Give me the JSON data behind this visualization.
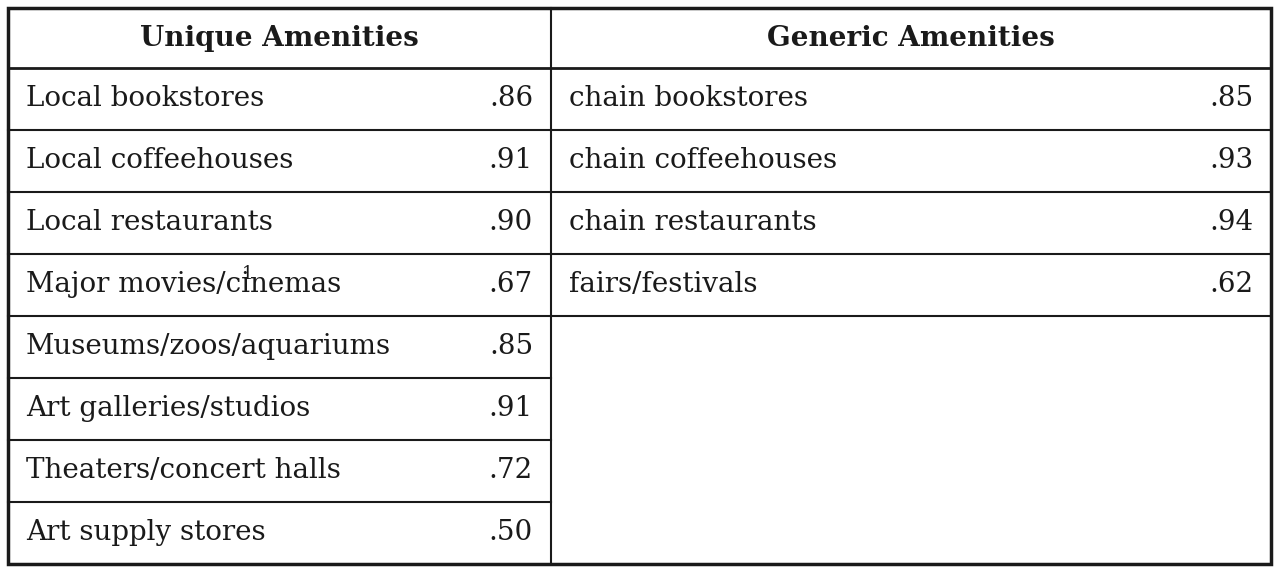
{
  "col1_header": "Unique Amenities",
  "col2_header": "Generic Amenities",
  "unique_items": [
    [
      "Local bookstores",
      ".86"
    ],
    [
      "Local coffeehouses",
      ".91"
    ],
    [
      "Local restaurants",
      ".90"
    ],
    [
      "Major movies/cinemas",
      ".67"
    ],
    [
      "Museums/zoos/aquariums",
      ".85"
    ],
    [
      "Art galleries/studios",
      ".91"
    ],
    [
      "Theaters/concert halls",
      ".72"
    ],
    [
      "Art supply stores",
      ".50"
    ]
  ],
  "generic_items": [
    [
      "chain bookstores",
      ".85"
    ],
    [
      "chain coffeehouses",
      ".93"
    ],
    [
      "chain restaurants",
      ".94"
    ],
    [
      "fairs/festivals",
      ".62"
    ]
  ],
  "bg_color": "#ffffff",
  "text_color": "#1a1a1a",
  "header_fontsize": 20,
  "cell_fontsize": 20,
  "superscript_row": 3
}
